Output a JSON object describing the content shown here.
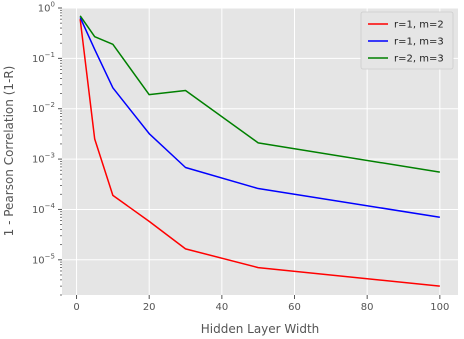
{
  "chart_data": {
    "type": "line",
    "xlabel": "Hidden Layer Width",
    "ylabel": "1 - Pearson Correlation (1-R)",
    "xlim": [
      -4,
      105
    ],
    "ylim": [
      2e-06,
      1
    ],
    "yscale": "log",
    "grid": true,
    "legend_position": "top-right",
    "x_ticks": [
      0,
      20,
      40,
      60,
      80,
      100
    ],
    "y_ticks": [
      1e-05,
      0.0001,
      0.001,
      0.01,
      0.1,
      1
    ],
    "background": "#e5e5e5",
    "series": [
      {
        "name": "r=1, m=2",
        "color": "#ff0000",
        "x": [
          1,
          5,
          10,
          20,
          30,
          50,
          100
        ],
        "y": [
          0.6,
          0.0025,
          0.00019,
          5.8e-05,
          1.65e-05,
          7e-06,
          3e-06
        ]
      },
      {
        "name": "r=1, m=3",
        "color": "#0000ff",
        "x": [
          1,
          5,
          10,
          20,
          30,
          50,
          100
        ],
        "y": [
          0.65,
          0.15,
          0.026,
          0.0032,
          0.00068,
          0.00026,
          7e-05
        ]
      },
      {
        "name": "r=2, m=3",
        "color": "#008000",
        "x": [
          1,
          5,
          10,
          20,
          30,
          50,
          100
        ],
        "y": [
          0.7,
          0.27,
          0.19,
          0.019,
          0.023,
          0.0021,
          0.00055
        ]
      }
    ]
  }
}
